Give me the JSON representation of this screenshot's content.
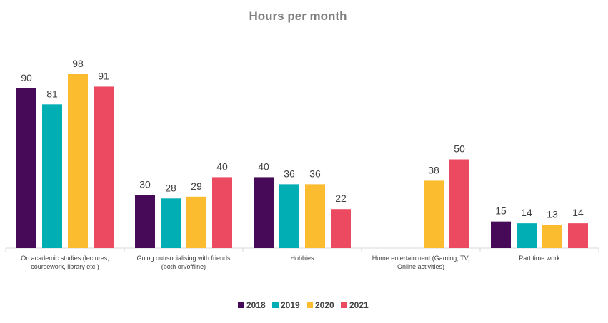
{
  "chart_data": {
    "type": "bar",
    "title": "Hours per month",
    "xlabel": "",
    "ylabel": "",
    "ylim": [
      0,
      100
    ],
    "grid": false,
    "legend_position": "bottom",
    "categories": [
      [
        "On academic studies (lectures,",
        "coursework, library etc.)"
      ],
      [
        "Going out/socialising with friends",
        "(both on/offline)"
      ],
      [
        "Hobbies"
      ],
      [
        "Home entertainment (Gaming, TV,",
        "Online activities)"
      ],
      [
        "Part time work"
      ]
    ],
    "series": [
      {
        "name": "2018",
        "color": "#470a59",
        "values": [
          90,
          30,
          40,
          null,
          15
        ]
      },
      {
        "name": "2019",
        "color": "#00aeb4",
        "values": [
          81,
          28,
          36,
          null,
          14
        ]
      },
      {
        "name": "2020",
        "color": "#fbbc2f",
        "values": [
          98,
          29,
          36,
          38,
          13
        ]
      },
      {
        "name": "2021",
        "color": "#eb4a60",
        "values": [
          91,
          40,
          22,
          50,
          14
        ]
      }
    ]
  }
}
